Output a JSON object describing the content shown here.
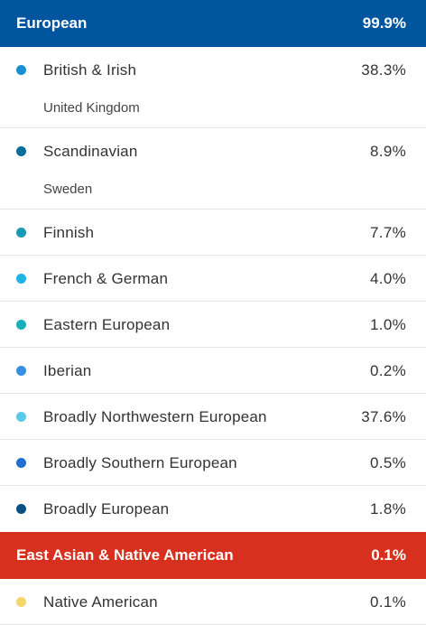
{
  "groups": [
    {
      "name": "European",
      "percent": "99.9%",
      "color": "#00559e",
      "regions": [
        {
          "name": "British & Irish",
          "percent": "38.3%",
          "dot_color": "#1a8fd0",
          "sub": "United Kingdom"
        },
        {
          "name": "Scandinavian",
          "percent": "8.9%",
          "dot_color": "#0a6d9e",
          "sub": "Sweden"
        },
        {
          "name": "Finnish",
          "percent": "7.7%",
          "dot_color": "#1899b5",
          "sub": null
        },
        {
          "name": "French & German",
          "percent": "4.0%",
          "dot_color": "#1cb5e6",
          "sub": null
        },
        {
          "name": "Eastern European",
          "percent": "1.0%",
          "dot_color": "#17b0b8",
          "sub": null
        },
        {
          "name": "Iberian",
          "percent": "0.2%",
          "dot_color": "#3a8ee0",
          "sub": null
        },
        {
          "name": "Broadly Northwestern European",
          "percent": "37.6%",
          "dot_color": "#5cc9ea",
          "sub": null
        },
        {
          "name": "Broadly Southern European",
          "percent": "0.5%",
          "dot_color": "#1f6fd0",
          "sub": null
        },
        {
          "name": "Broadly European",
          "percent": "1.8%",
          "dot_color": "#0a4f84",
          "sub": null
        }
      ]
    },
    {
      "name": "East Asian & Native American",
      "percent": "0.1%",
      "color": "#d7301f",
      "regions": [
        {
          "name": "Native American",
          "percent": "0.1%",
          "dot_color": "#f5d66e",
          "sub": null
        }
      ]
    }
  ]
}
